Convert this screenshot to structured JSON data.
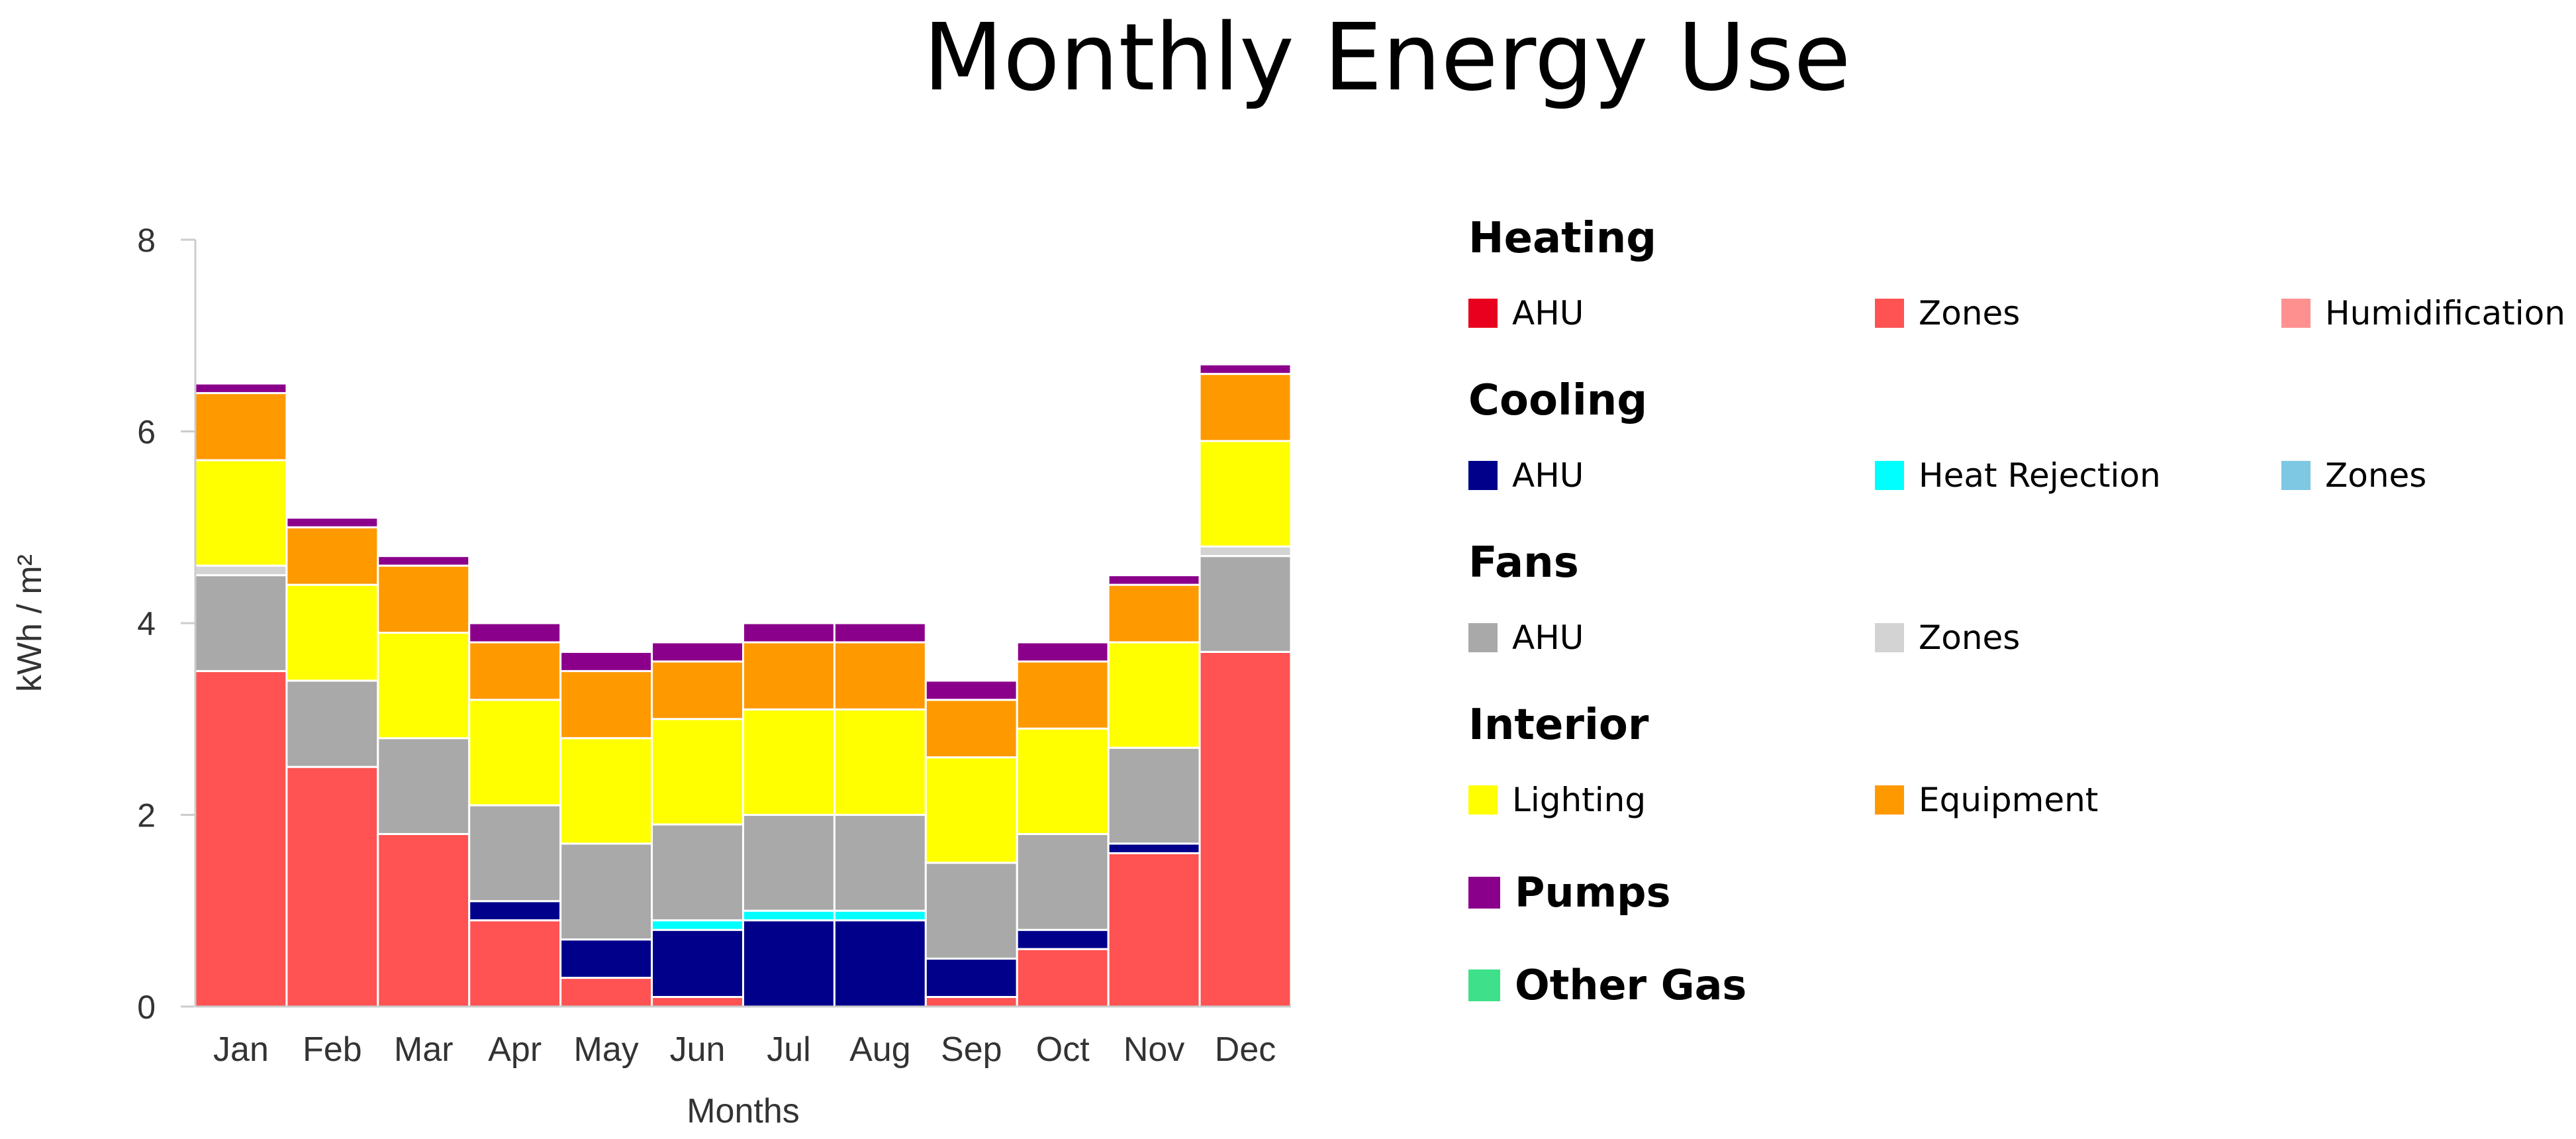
{
  "title": "Monthly Energy Use",
  "colors": {
    "heating_ahu": "#e8001e",
    "heating_zones": "#ff5252",
    "heating_humidification": "#ff9090",
    "cooling_ahu": "#00008b",
    "cooling_heat_rejection": "#00ffff",
    "cooling_zones": "#7ec8e3",
    "fans_ahu": "#a9a9a9",
    "fans_zones": "#d3d3d3",
    "interior_lighting": "#ffff00",
    "interior_equipment": "#ff9900",
    "pumps": "#8b008b",
    "other_gas": "#3fe08a"
  },
  "legend": {
    "groups": [
      {
        "title": "Heating",
        "items": [
          {
            "label": "AHU",
            "color_key": "heating_ahu"
          },
          {
            "label": "Zones",
            "color_key": "heating_zones"
          },
          {
            "label": "Humidification",
            "color_key": "heating_humidification"
          }
        ]
      },
      {
        "title": "Cooling",
        "items": [
          {
            "label": "AHU",
            "color_key": "cooling_ahu"
          },
          {
            "label": "Heat Rejection",
            "color_key": "cooling_heat_rejection"
          },
          {
            "label": "Zones",
            "color_key": "cooling_zones"
          }
        ]
      },
      {
        "title": "Fans",
        "items": [
          {
            "label": "AHU",
            "color_key": "fans_ahu"
          },
          {
            "label": "Zones",
            "color_key": "fans_zones"
          }
        ]
      },
      {
        "title": "Interior",
        "items": [
          {
            "label": "Lighting",
            "color_key": "interior_lighting"
          },
          {
            "label": "Equipment",
            "color_key": "interior_equipment"
          }
        ]
      }
    ],
    "standalone": [
      {
        "label": "Pumps",
        "color_key": "pumps"
      },
      {
        "label": "Other Gas",
        "color_key": "other_gas"
      }
    ]
  },
  "chart_data": {
    "type": "bar",
    "stacked": true,
    "title": "Monthly Energy Use",
    "xlabel": "Months",
    "ylabel": "kWh / m²",
    "ylim": [
      0,
      8
    ],
    "yticks": [
      0,
      2,
      4,
      6,
      8
    ],
    "grid": false,
    "legend_position": "right",
    "categories": [
      "Jan",
      "Feb",
      "Mar",
      "Apr",
      "May",
      "Jun",
      "Jul",
      "Aug",
      "Sep",
      "Oct",
      "Nov",
      "Dec"
    ],
    "series": [
      {
        "name": "Heating Zones",
        "color_key": "heating_zones",
        "values": [
          3.5,
          2.5,
          1.8,
          0.9,
          0.3,
          0.1,
          0,
          0,
          0.1,
          0.6,
          1.6,
          3.7
        ]
      },
      {
        "name": "Cooling AHU",
        "color_key": "cooling_ahu",
        "values": [
          0,
          0,
          0,
          0.2,
          0.4,
          0.7,
          0.9,
          0.9,
          0.4,
          0.2,
          0.1,
          0
        ]
      },
      {
        "name": "Cooling Heat Rejection",
        "color_key": "cooling_heat_rejection",
        "values": [
          0,
          0,
          0,
          0,
          0,
          0.1,
          0.1,
          0.1,
          0,
          0,
          0,
          0
        ]
      },
      {
        "name": "Fans AHU",
        "color_key": "fans_ahu",
        "values": [
          1.0,
          0.9,
          1.0,
          1.0,
          1.0,
          1.0,
          1.0,
          1.0,
          1.0,
          1.0,
          1.0,
          1.0
        ]
      },
      {
        "name": "Fans Zones",
        "color_key": "fans_zones",
        "values": [
          0.1,
          0,
          0,
          0,
          0,
          0,
          0,
          0,
          0,
          0,
          0,
          0.1
        ]
      },
      {
        "name": "Interior Lighting",
        "color_key": "interior_lighting",
        "values": [
          1.1,
          1.0,
          1.1,
          1.1,
          1.1,
          1.1,
          1.1,
          1.1,
          1.1,
          1.1,
          1.1,
          1.1
        ]
      },
      {
        "name": "Interior Equipment",
        "color_key": "interior_equipment",
        "values": [
          0.7,
          0.6,
          0.7,
          0.6,
          0.7,
          0.6,
          0.7,
          0.7,
          0.6,
          0.7,
          0.6,
          0.7
        ]
      },
      {
        "name": "Pumps",
        "color_key": "pumps",
        "values": [
          0.1,
          0.1,
          0.1,
          0.2,
          0.2,
          0.2,
          0.2,
          0.2,
          0.2,
          0.2,
          0.1,
          0.1
        ]
      }
    ]
  }
}
